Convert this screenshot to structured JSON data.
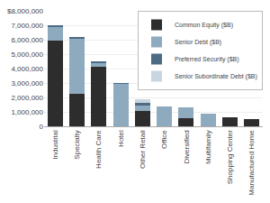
{
  "chart_data": {
    "type": "bar",
    "stacked": true,
    "categories": [
      "Industrial",
      "Specialty",
      "Health Care",
      "Hotel",
      "Other Retail",
      "Office",
      "Diversified",
      "Multifamily",
      "Shopping Center",
      "Manufactured Home"
    ],
    "series": [
      {
        "name": "Common Equity ($B)",
        "color": "#2d2d2d",
        "values": [
          5950000,
          2250000,
          4150000,
          0,
          1050000,
          0,
          550000,
          0,
          600000,
          500000
        ]
      },
      {
        "name": "Senior Debt ($B)",
        "color": "#8eaabf",
        "values": [
          950000,
          3850000,
          250000,
          2950000,
          400000,
          1350000,
          750000,
          850000,
          0,
          0
        ]
      },
      {
        "name": "Preferred Security ($B)",
        "color": "#4d6b85",
        "values": [
          100000,
          50000,
          50000,
          50000,
          200000,
          0,
          0,
          0,
          0,
          0
        ]
      },
      {
        "name": "Senior Subordinate Debt ($B)",
        "color": "#c9d6df",
        "values": [
          0,
          0,
          0,
          0,
          200000,
          0,
          0,
          0,
          0,
          0
        ]
      }
    ],
    "ylim": [
      0,
      8000000
    ],
    "yticks": [
      0,
      {
        "value": 1000000,
        "label": "1,000,000"
      },
      {
        "value": 2000000,
        "label": "2,000,000"
      },
      {
        "value": 3000000,
        "label": "3,000,000"
      },
      {
        "value": 4000000,
        "label": "4,000,000"
      },
      {
        "value": 5000000,
        "label": "5,000,000"
      },
      {
        "value": 6000000,
        "label": "6,000,000"
      },
      {
        "value": 7000000,
        "label": "7,000,000"
      },
      {
        "value": 8000000,
        "label": "$8,000,000"
      }
    ],
    "grid": true,
    "legend": "upper right"
  }
}
